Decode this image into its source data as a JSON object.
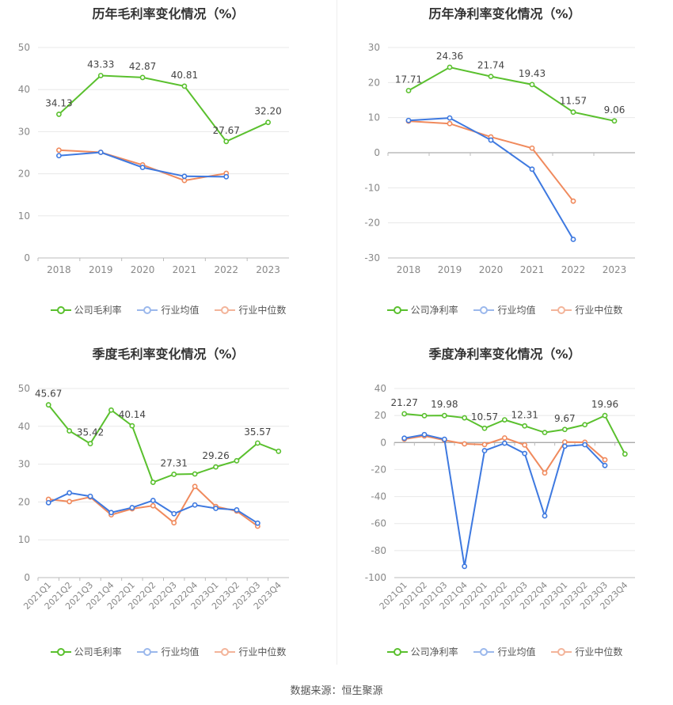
{
  "chart_data": [
    {
      "id": "p1",
      "type": "line",
      "title": "历年毛利率变化情况（%）",
      "categories": [
        "2018",
        "2019",
        "2020",
        "2021",
        "2022",
        "2023"
      ],
      "ylim": [
        0,
        50
      ],
      "yticks": [
        0,
        10,
        20,
        30,
        40,
        50
      ],
      "series": [
        {
          "name": "公司毛利率",
          "color": "#5ac02e",
          "values": [
            34.13,
            43.33,
            42.87,
            40.81,
            27.67,
            32.2
          ],
          "labels": [
            "34.13",
            "43.33",
            "42.87",
            "40.81",
            "27.67",
            "32.20"
          ]
        },
        {
          "name": "行业均值",
          "color": "#3e79e0",
          "values": [
            24.3,
            25.1,
            21.5,
            19.4,
            19.3,
            null
          ]
        },
        {
          "name": "行业中位数",
          "color": "#f08a5d",
          "values": [
            25.6,
            25.1,
            22.1,
            18.4,
            20.1,
            null
          ]
        }
      ]
    },
    {
      "id": "p2",
      "type": "line",
      "title": "历年净利率变化情况（%）",
      "categories": [
        "2018",
        "2019",
        "2020",
        "2021",
        "2022",
        "2023"
      ],
      "ylim": [
        -30,
        30
      ],
      "yticks": [
        -30,
        -20,
        -10,
        0,
        10,
        20,
        30
      ],
      "series": [
        {
          "name": "公司净利率",
          "color": "#5ac02e",
          "values": [
            17.71,
            24.36,
            21.74,
            19.43,
            11.57,
            9.06
          ],
          "labels": [
            "17.71",
            "24.36",
            "21.74",
            "19.43",
            "11.57",
            "9.06"
          ]
        },
        {
          "name": "行业均值",
          "color": "#3e79e0",
          "values": [
            9.2,
            9.9,
            3.6,
            -4.7,
            -24.7,
            null
          ]
        },
        {
          "name": "行业中位数",
          "color": "#f08a5d",
          "values": [
            9.0,
            8.3,
            4.5,
            1.3,
            -13.8,
            null
          ]
        }
      ]
    },
    {
      "id": "p3",
      "type": "line",
      "title": "季度毛利率变化情况（%）",
      "categories": [
        "2021Q1",
        "2021Q2",
        "2021Q3",
        "2021Q4",
        "2022Q1",
        "2022Q2",
        "2022Q3",
        "2022Q4",
        "2023Q1",
        "2023Q2",
        "2023Q3",
        "2023Q4"
      ],
      "ylim": [
        0,
        50
      ],
      "yticks": [
        0,
        10,
        20,
        30,
        40,
        50
      ],
      "series": [
        {
          "name": "公司毛利率",
          "color": "#5ac02e",
          "values": [
            45.67,
            38.8,
            35.42,
            44.3,
            40.14,
            25.2,
            27.31,
            27.4,
            29.26,
            30.9,
            35.57,
            33.4
          ],
          "labels": [
            "45.67",
            "",
            "35.42",
            "",
            "40.14",
            "",
            "27.31",
            "",
            "29.26",
            "",
            "35.57",
            ""
          ]
        },
        {
          "name": "行业均值",
          "color": "#3e79e0",
          "values": [
            19.8,
            22.4,
            21.5,
            17.2,
            18.5,
            20.4,
            16.9,
            19.2,
            18.3,
            17.9,
            14.4,
            null
          ]
        },
        {
          "name": "行业中位数",
          "color": "#f08a5d",
          "values": [
            20.7,
            20.1,
            21.3,
            16.6,
            18.2,
            19.0,
            14.5,
            24.1,
            18.8,
            17.6,
            13.6,
            null
          ]
        }
      ]
    },
    {
      "id": "p4",
      "type": "line",
      "title": "季度净利率变化情况（%）",
      "categories": [
        "2021Q1",
        "2021Q2",
        "2021Q3",
        "2021Q4",
        "2022Q1",
        "2022Q2",
        "2022Q3",
        "2022Q4",
        "2023Q1",
        "2023Q2",
        "2023Q3",
        "2023Q4"
      ],
      "ylim": [
        -100,
        40
      ],
      "yticks": [
        -100,
        -80,
        -60,
        -40,
        -20,
        0,
        20,
        40
      ],
      "series": [
        {
          "name": "公司净利率",
          "color": "#5ac02e",
          "values": [
            21.27,
            19.9,
            19.98,
            18.3,
            10.57,
            16.8,
            12.31,
            7.4,
            9.67,
            13.2,
            19.96,
            -8.5
          ],
          "labels": [
            "21.27",
            "",
            "19.98",
            "",
            "10.57",
            "",
            "12.31",
            "",
            "9.67",
            "",
            "19.96",
            ""
          ]
        },
        {
          "name": "行业均值",
          "color": "#3e79e0",
          "values": [
            3.2,
            5.9,
            2.4,
            -91.7,
            -6.0,
            -0.5,
            -8.1,
            -54.3,
            -2.7,
            -1.6,
            -17.0,
            null
          ]
        },
        {
          "name": "行业中位数",
          "color": "#f08a5d",
          "values": [
            2.5,
            4.9,
            1.8,
            -1.0,
            -1.5,
            3.4,
            -1.8,
            -22.5,
            0.4,
            0.2,
            -12.8,
            null
          ]
        }
      ]
    }
  ],
  "source": "数据来源：恒生聚源"
}
